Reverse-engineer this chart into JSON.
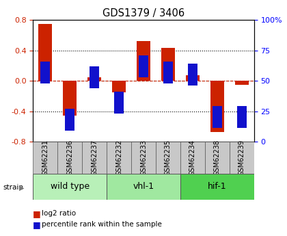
{
  "title": "GDS1379 / 3406",
  "samples": [
    "GSM62231",
    "GSM62236",
    "GSM62237",
    "GSM62232",
    "GSM62233",
    "GSM62235",
    "GSM62234",
    "GSM62238",
    "GSM62239"
  ],
  "log2_ratio": [
    0.75,
    -0.46,
    0.05,
    -0.15,
    0.52,
    0.43,
    0.07,
    -0.67,
    -0.05
  ],
  "percentile": [
    57,
    18,
    53,
    32,
    62,
    57,
    55,
    20,
    20
  ],
  "groups": [
    {
      "label": "wild type",
      "indices": [
        0,
        1,
        2
      ],
      "color": "#b8f0b8"
    },
    {
      "label": "vhl-1",
      "indices": [
        3,
        4,
        5
      ],
      "color": "#a0e8a0"
    },
    {
      "label": "hif-1",
      "indices": [
        6,
        7,
        8
      ],
      "color": "#50d050"
    }
  ],
  "bar_color_red": "#cc2200",
  "bar_color_blue": "#1111cc",
  "ylim_left": [
    -0.8,
    0.8
  ],
  "ylim_right": [
    0,
    100
  ],
  "yticks_left": [
    -0.8,
    -0.4,
    0.0,
    0.4,
    0.8
  ],
  "yticks_right": [
    0,
    25,
    50,
    75,
    100
  ],
  "legend_items": [
    "log2 ratio",
    "percentile rank within the sample"
  ],
  "bar_width": 0.55,
  "blue_square_size": 0.018,
  "gray_box_color": "#c8c8c8",
  "label_fontsize": 7,
  "group_fontsize": 9
}
